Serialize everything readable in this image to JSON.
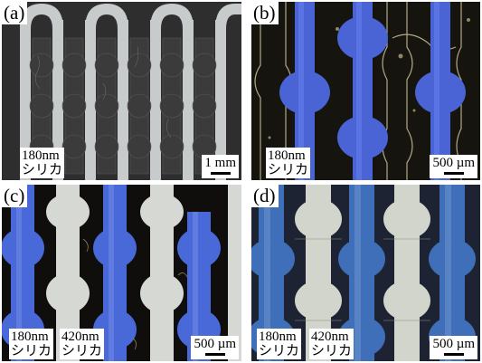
{
  "figure": {
    "panels": [
      {
        "label": "(a)",
        "materials": [
          {
            "size": "180nm",
            "name": "シリカ"
          }
        ],
        "scale_label": "1 mm",
        "colors": {
          "background": "#2c2c2c",
          "substrate": "#c9cccd",
          "pattern": "#3a3a3a"
        }
      },
      {
        "label": "(b)",
        "materials": [
          {
            "size": "180nm",
            "name": "シリカ"
          }
        ],
        "scale_label": "500 µm",
        "colors": {
          "background": "#14140f",
          "channel_blue": "#4a64d6",
          "edge": "#cfc39a"
        }
      },
      {
        "label": "(c)",
        "materials": [
          {
            "size": "180nm",
            "name": "シリカ"
          },
          {
            "size": "420nm",
            "name": "シリカ"
          }
        ],
        "scale_label": "500 µm",
        "colors": {
          "background": "#0e0d0b",
          "channel_blue": "#4a69d8",
          "channel_white": "#d6d8d4"
        }
      },
      {
        "label": "(d)",
        "materials": [
          {
            "size": "180nm",
            "name": "シリカ"
          },
          {
            "size": "420nm",
            "name": "シリカ"
          }
        ],
        "scale_label": "500 µm",
        "colors": {
          "background": "#1d2233",
          "channel_blue": "#3f6fb8",
          "channel_white": "#d2d5cc"
        }
      }
    ]
  }
}
